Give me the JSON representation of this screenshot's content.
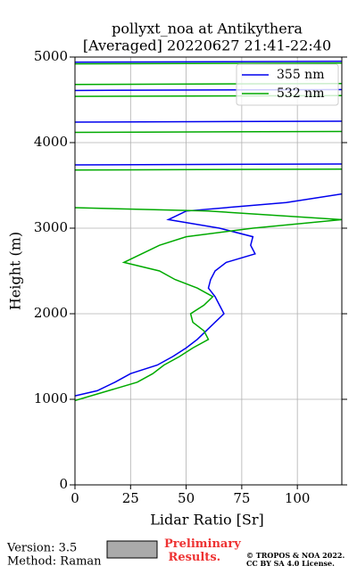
{
  "chart_data": {
    "type": "line",
    "title": "pollyxt_noa at Antikythera",
    "subtitle": "[Averaged] 20220627 21:41-22:40",
    "x_label": "Lidar Ratio [Sr]",
    "y_label": "Height (m)",
    "xlim": [
      0,
      120
    ],
    "ylim": [
      0,
      5000
    ],
    "xticks": [
      0,
      25,
      50,
      75,
      100
    ],
    "yticks": [
      0,
      1000,
      2000,
      3000,
      4000,
      5000
    ],
    "grid": true,
    "legend": "upper right",
    "series": [
      {
        "name": "355 nm",
        "color": "#0000ee",
        "y": [
          1040,
          1100,
          1200,
          1300,
          1400,
          1500,
          1600,
          1700,
          1800,
          1900,
          2000,
          2100,
          2200,
          2300,
          2400,
          2500,
          2600,
          2700,
          2800,
          2900,
          3000,
          3100,
          3200,
          3300,
          3400,
          3500,
          3740,
          3750,
          3800,
          4240,
          4250,
          4300,
          4610,
          4620,
          4700,
          4940,
          4950
        ],
        "values": [
          0,
          10,
          18,
          25,
          37,
          44,
          50,
          55,
          59,
          63,
          67,
          65,
          63,
          60,
          61,
          63,
          68,
          81,
          79,
          80,
          65,
          42,
          50,
          95,
          120,
          null,
          0,
          120,
          null,
          0,
          120,
          null,
          0,
          120,
          null,
          0,
          120
        ]
      },
      {
        "name": "532 nm",
        "color": "#00aa00",
        "y": [
          985,
          1100,
          1200,
          1300,
          1400,
          1500,
          1600,
          1700,
          1800,
          1900,
          2000,
          2100,
          2200,
          2300,
          2400,
          2500,
          2600,
          2700,
          2800,
          2900,
          3000,
          3100,
          3200,
          3240,
          3300,
          3680,
          3690,
          3700,
          4120,
          4130,
          4200,
          4540,
          4550,
          4600,
          4680,
          4690,
          4800,
          4920,
          4930
        ],
        "values": [
          0,
          15,
          28,
          35,
          40,
          47,
          53,
          60,
          58,
          53,
          52,
          58,
          62,
          55,
          45,
          38,
          22,
          30,
          38,
          50,
          80,
          120,
          60,
          0,
          null,
          0,
          120,
          null,
          0,
          120,
          null,
          0,
          120,
          null,
          0,
          120,
          null,
          0,
          120
        ]
      }
    ]
  },
  "footer": {
    "version": "Version: 3.5",
    "method": "Method: Raman",
    "status": "Preliminary Results.",
    "license": "© TROPOS & NOA 2022.",
    "license2": "CC BY SA 4.0 License."
  }
}
